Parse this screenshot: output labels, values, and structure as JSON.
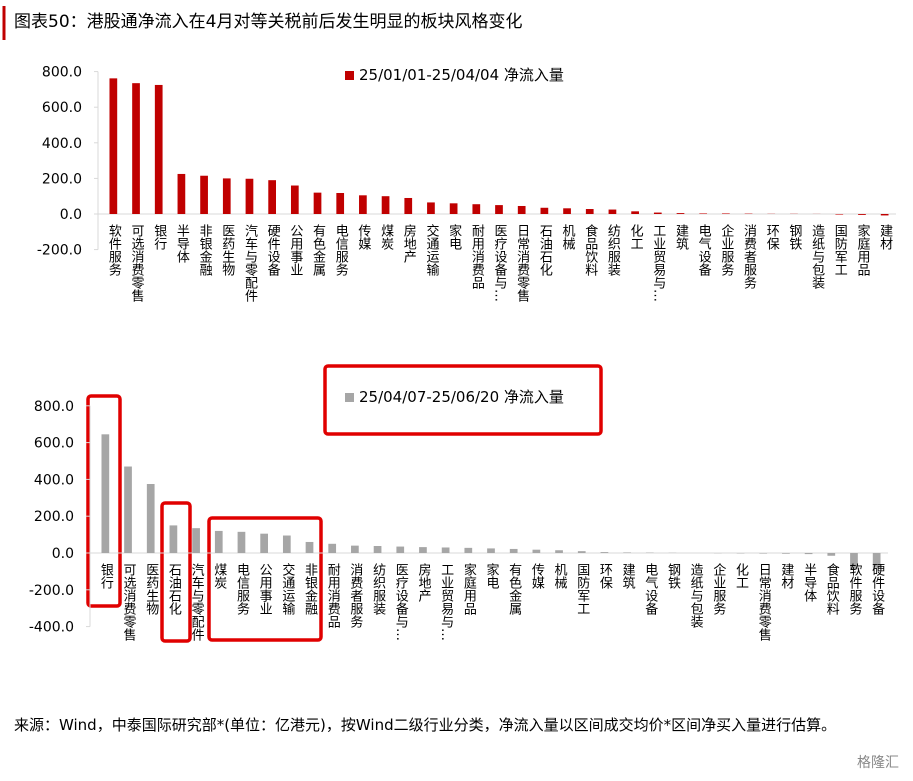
{
  "title": "图表50：港股通净流入在4月对等关税前后发生明显的板块风格变化",
  "source": "来源：Wind，中泰国际研究部*(单位：亿港元)，按Wind二级行业分类，净流入量以区间成交均价*区间净买入量进行估算。",
  "watermark": "格隆汇",
  "chart_data": [
    {
      "type": "bar",
      "categories": [
        "软件服务",
        "可选消费零售",
        "银行",
        "半导体",
        "非银金融",
        "医药生物",
        "汽车与零配件",
        "硬件设备",
        "公用事业",
        "有色金属",
        "电信服务",
        "传媒",
        "煤炭",
        "房地产",
        "交通运输",
        "家电",
        "耐用消费品",
        "医疗设备与…",
        "日常消费零售",
        "石油石化",
        "机械",
        "食品饮料",
        "纺织服装",
        "化工",
        "工业贸易与…",
        "建筑",
        "电气设备",
        "企业服务",
        "消费者服务",
        "环保",
        "钢铁",
        "造纸与包装",
        "国防军工",
        "家庭用品",
        "建材"
      ],
      "series": [
        {
          "name": "25/01/01-25/04/04 净流入量",
          "color": "#c00000",
          "values": [
            762,
            735,
            725,
            225,
            215,
            200,
            198,
            190,
            160,
            120,
            118,
            105,
            100,
            90,
            65,
            60,
            55,
            50,
            45,
            35,
            32,
            28,
            25,
            15,
            8,
            5,
            3,
            3,
            2,
            1,
            1,
            0.5,
            -3,
            -5,
            -8
          ]
        }
      ],
      "ylim": [
        -200,
        800
      ],
      "yticks": [
        {
          "value": -200,
          "label": "-200.0"
        },
        {
          "value": 0,
          "label": "0.0"
        },
        {
          "value": 200,
          "label": "200.0"
        },
        {
          "value": 400,
          "label": "400.0"
        },
        {
          "value": 600,
          "label": "600.0"
        },
        {
          "value": 800,
          "label": "800.0"
        }
      ]
    },
    {
      "type": "bar",
      "categories": [
        "银行",
        "可选消费零售",
        "医药生物",
        "石油石化",
        "汽车与零配件",
        "煤炭",
        "电信服务",
        "公用事业",
        "交通运输",
        "非银金融",
        "耐用消费品",
        "消费者服务",
        "纺织服装",
        "医疗设备与…",
        "房地产",
        "工业贸易与…",
        "家庭用品",
        "家电",
        "有色金属",
        "传媒",
        "机械",
        "国防军工",
        "环保",
        "建筑",
        "电气设备",
        "钢铁",
        "造纸与包装",
        "企业服务",
        "化工",
        "日常消费零售",
        "建材",
        "半导体",
        "食品饮料",
        "软件服务",
        "硬件设备"
      ],
      "series": [
        {
          "name": "25/04/07-25/06/20 净流入量",
          "color": "#a6a6a6",
          "values": [
            645,
            470,
            375,
            150,
            135,
            120,
            115,
            105,
            95,
            60,
            50,
            40,
            38,
            35,
            32,
            30,
            28,
            25,
            22,
            18,
            15,
            10,
            5,
            3,
            2,
            1,
            0,
            -1,
            -2,
            -3,
            -4,
            -6,
            -15,
            -90,
            -80
          ]
        }
      ],
      "ylim": [
        -400,
        800
      ],
      "yticks": [
        {
          "value": -400,
          "label": "-400.0"
        },
        {
          "value": -200,
          "label": "-200.0"
        },
        {
          "value": 0,
          "label": "0.0"
        },
        {
          "value": 200,
          "label": "200.0"
        },
        {
          "value": 400,
          "label": "400.0"
        },
        {
          "value": 600,
          "label": "600.0"
        },
        {
          "value": 800,
          "label": "800.0"
        }
      ]
    }
  ]
}
